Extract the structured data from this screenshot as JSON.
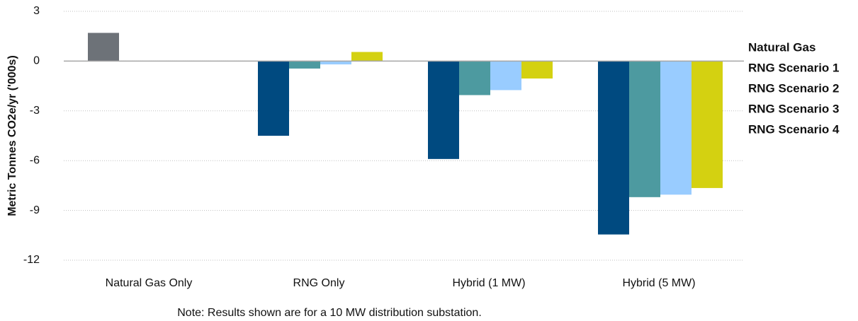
{
  "chart_data": {
    "type": "bar",
    "y_label": "Metric Tonnes CO2e/yr ('000s)",
    "note": "Note: Results shown are for a 10 MW distribution substation.",
    "categories": [
      "Natural Gas Only",
      "RNG Only",
      "Hybrid (1 MW)",
      "Hybrid (5 MW)"
    ],
    "series": [
      {
        "name": "Natural Gas",
        "color": "#6d7278",
        "values": [
          1.7,
          null,
          null,
          null
        ]
      },
      {
        "name": "RNG Scenario 1",
        "color": "#004a80",
        "values": [
          null,
          -4.5,
          -5.9,
          -10.45
        ]
      },
      {
        "name": "RNG Scenario 2",
        "color": "#d4d111",
        "values": [
          null,
          0.55,
          -1.05,
          -7.65
        ]
      },
      {
        "name": "RNG Scenario 3",
        "color": "#99ccff",
        "values": [
          null,
          -0.2,
          -1.75,
          -8.05
        ]
      },
      {
        "name": "RNG Scenario 4",
        "color": "#4d9aa0",
        "values": [
          null,
          -0.45,
          -2.05,
          -8.2
        ]
      }
    ],
    "ylim": [
      -12,
      3
    ],
    "yticks": [
      3,
      0,
      -3,
      -6,
      -9,
      -12
    ],
    "grid": true,
    "legend": "right"
  }
}
